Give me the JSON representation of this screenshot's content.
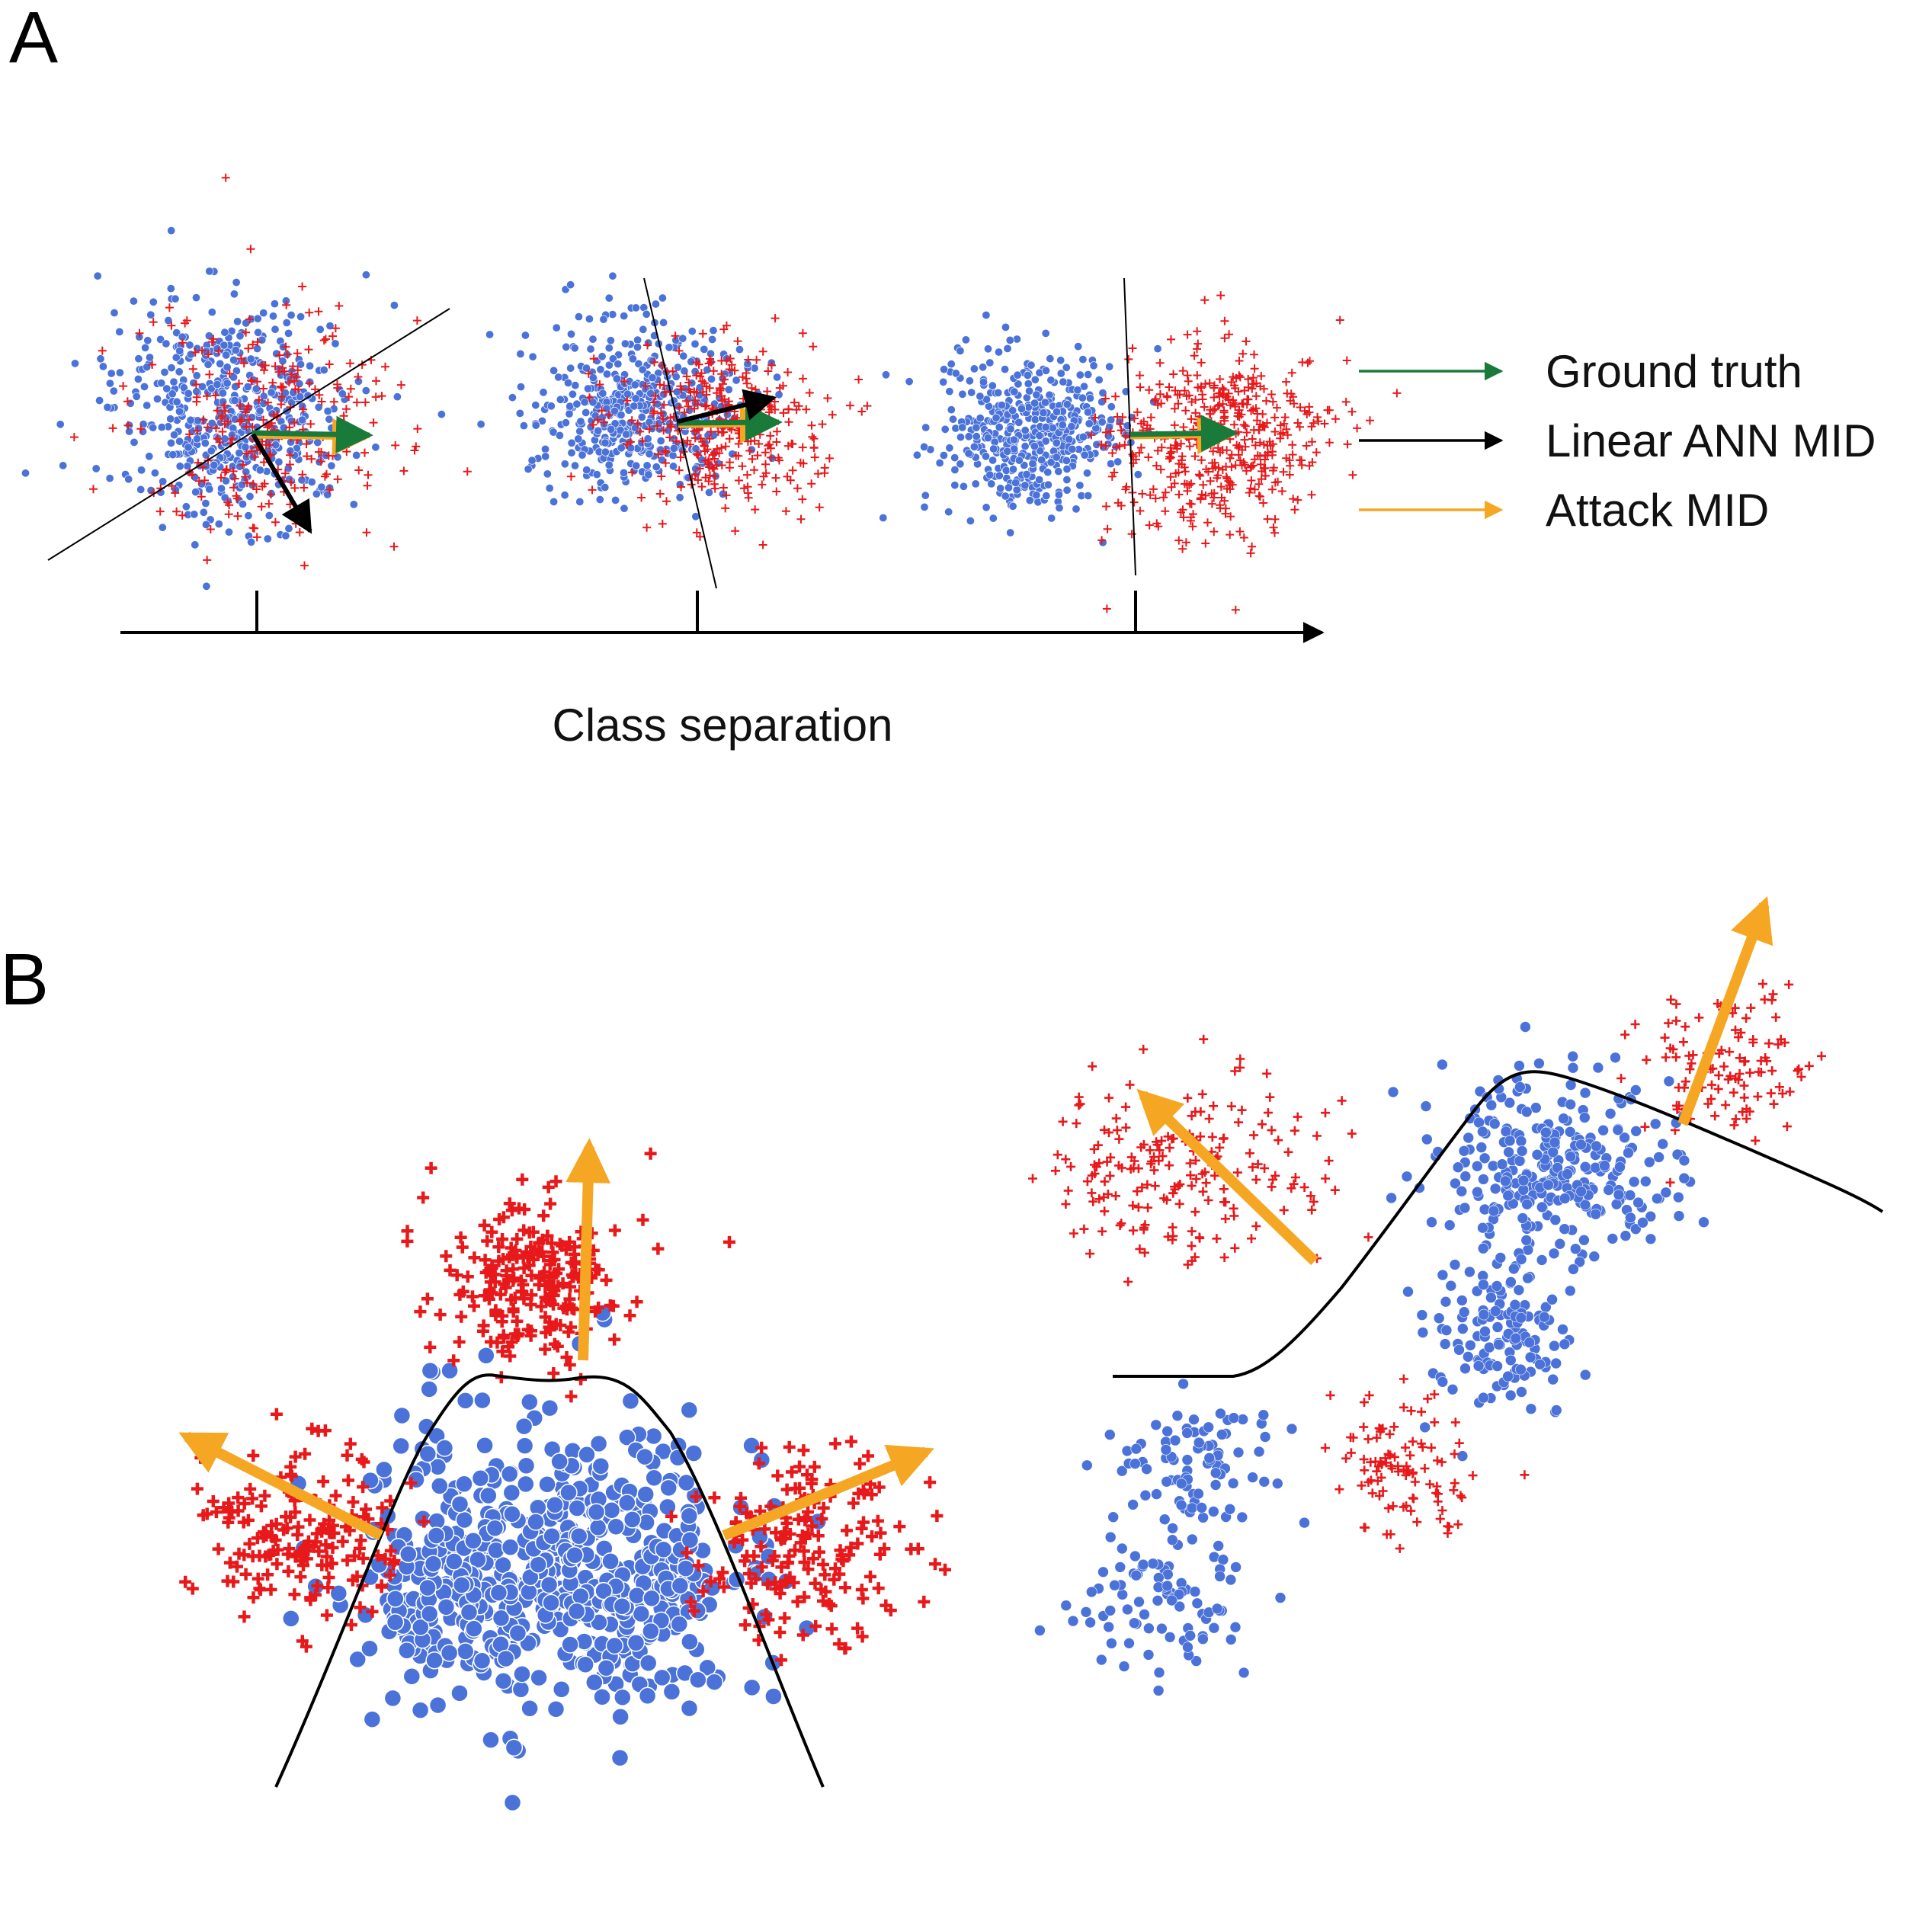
{
  "panels": {
    "a": {
      "label": "A"
    },
    "b": {
      "label": "B"
    }
  },
  "legend": [
    {
      "label": "Ground truth",
      "color": "#1a7a3a"
    },
    {
      "label": "Linear ANN MID",
      "color": "#000000"
    },
    {
      "label": "Attack MID",
      "color": "#f5a623"
    }
  ],
  "axis": {
    "label": "Class separation",
    "ticks": 3
  },
  "colors": {
    "class_dot": "#4a72d9",
    "class_plus": "#e8191b",
    "ground_truth": "#1a7a3a",
    "linear_mid": "#000000",
    "attack_mid": "#f5a623"
  },
  "glyphs": {
    "dot": "circle",
    "plus": "plus"
  }
}
